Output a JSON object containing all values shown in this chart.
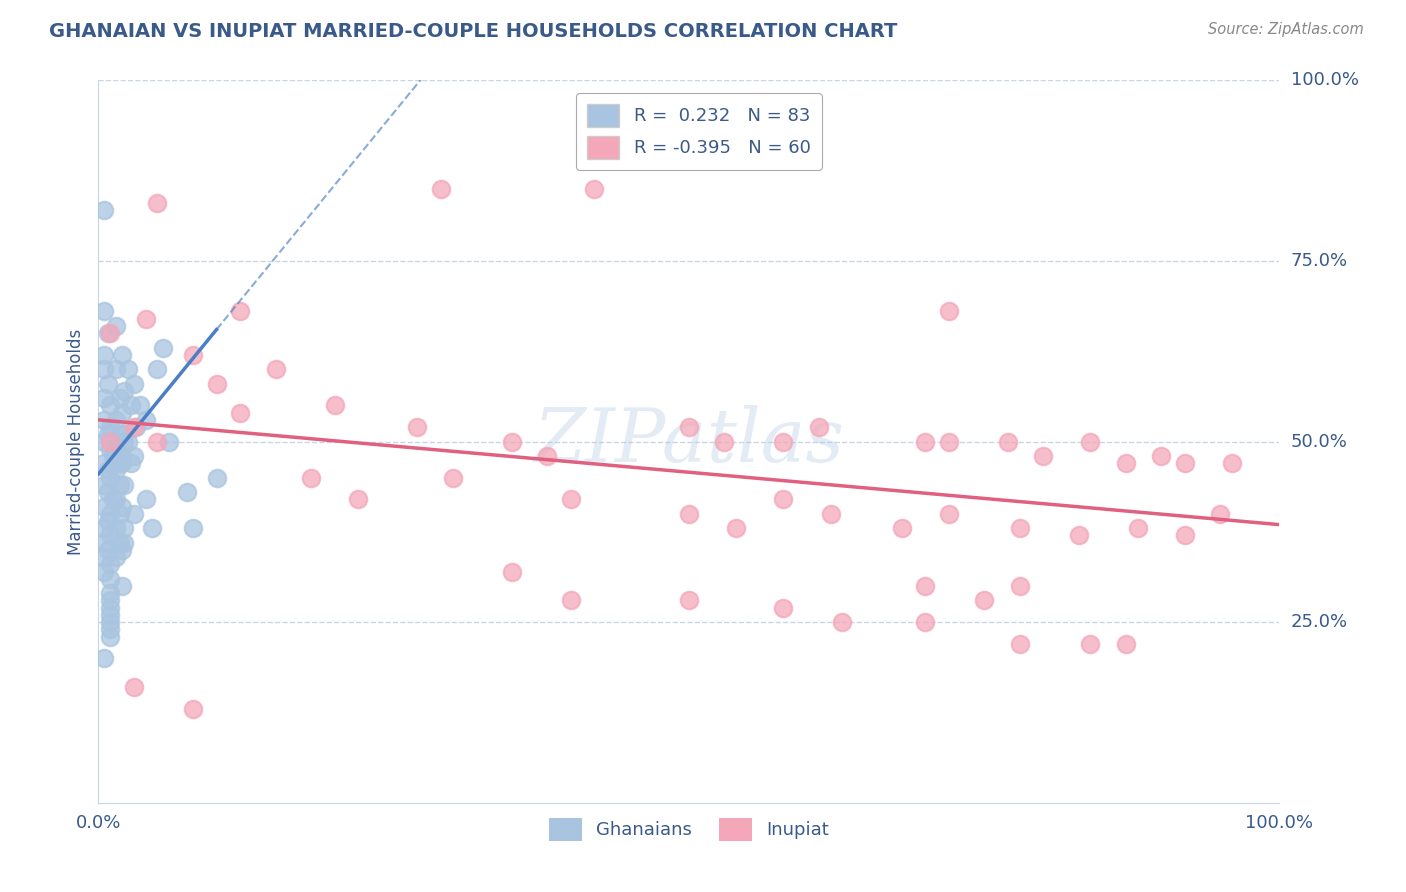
{
  "title": "GHANAIAN VS INUPIAT MARRIED-COUPLE HOUSEHOLDS CORRELATION CHART",
  "source": "Source: ZipAtlas.com",
  "ylabel": "Married-couple Households",
  "xlim": [
    0.0,
    1.0
  ],
  "ylim": [
    0.0,
    1.0
  ],
  "ytick_labels_right": [
    "100.0%",
    "75.0%",
    "50.0%",
    "25.0%"
  ],
  "ytick_vals_right": [
    1.0,
    0.75,
    0.5,
    0.25
  ],
  "watermark": "ZIPatlas",
  "ghanaian_R": 0.232,
  "ghanaian_N": 83,
  "inupiat_R": -0.395,
  "inupiat_N": 60,
  "ghanaian_color": "#a8c4e0",
  "inupiat_color": "#f4a7b9",
  "ghanaian_line_color": "#4a7fc4",
  "inupiat_line_color": "#e06080",
  "ghanaian_scatter": [
    [
      0.005,
      0.82
    ],
    [
      0.005,
      0.68
    ],
    [
      0.008,
      0.65
    ],
    [
      0.005,
      0.62
    ],
    [
      0.005,
      0.6
    ],
    [
      0.008,
      0.58
    ],
    [
      0.005,
      0.56
    ],
    [
      0.01,
      0.55
    ],
    [
      0.005,
      0.53
    ],
    [
      0.01,
      0.52
    ],
    [
      0.008,
      0.51
    ],
    [
      0.005,
      0.5
    ],
    [
      0.01,
      0.49
    ],
    [
      0.012,
      0.48
    ],
    [
      0.005,
      0.47
    ],
    [
      0.008,
      0.46
    ],
    [
      0.01,
      0.45
    ],
    [
      0.005,
      0.44
    ],
    [
      0.008,
      0.43
    ],
    [
      0.012,
      0.42
    ],
    [
      0.005,
      0.41
    ],
    [
      0.01,
      0.4
    ],
    [
      0.008,
      0.39
    ],
    [
      0.005,
      0.38
    ],
    [
      0.01,
      0.37
    ],
    [
      0.005,
      0.36
    ],
    [
      0.008,
      0.35
    ],
    [
      0.005,
      0.34
    ],
    [
      0.01,
      0.33
    ],
    [
      0.005,
      0.32
    ],
    [
      0.015,
      0.66
    ],
    [
      0.015,
      0.6
    ],
    [
      0.018,
      0.56
    ],
    [
      0.015,
      0.53
    ],
    [
      0.018,
      0.51
    ],
    [
      0.015,
      0.49
    ],
    [
      0.018,
      0.47
    ],
    [
      0.015,
      0.46
    ],
    [
      0.018,
      0.44
    ],
    [
      0.015,
      0.42
    ],
    [
      0.018,
      0.4
    ],
    [
      0.015,
      0.38
    ],
    [
      0.018,
      0.36
    ],
    [
      0.015,
      0.34
    ],
    [
      0.02,
      0.62
    ],
    [
      0.022,
      0.57
    ],
    [
      0.02,
      0.54
    ],
    [
      0.022,
      0.51
    ],
    [
      0.02,
      0.48
    ],
    [
      0.022,
      0.44
    ],
    [
      0.02,
      0.41
    ],
    [
      0.022,
      0.38
    ],
    [
      0.02,
      0.35
    ],
    [
      0.025,
      0.6
    ],
    [
      0.028,
      0.55
    ],
    [
      0.025,
      0.5
    ],
    [
      0.028,
      0.47
    ],
    [
      0.03,
      0.58
    ],
    [
      0.032,
      0.52
    ],
    [
      0.03,
      0.48
    ],
    [
      0.035,
      0.55
    ],
    [
      0.04,
      0.53
    ],
    [
      0.05,
      0.6
    ],
    [
      0.055,
      0.63
    ],
    [
      0.04,
      0.42
    ],
    [
      0.045,
      0.38
    ],
    [
      0.06,
      0.5
    ],
    [
      0.005,
      0.2
    ],
    [
      0.02,
      0.47
    ],
    [
      0.022,
      0.5
    ],
    [
      0.01,
      0.28
    ],
    [
      0.01,
      0.25
    ],
    [
      0.02,
      0.3
    ],
    [
      0.03,
      0.4
    ],
    [
      0.022,
      0.36
    ],
    [
      0.01,
      0.31
    ],
    [
      0.01,
      0.29
    ],
    [
      0.01,
      0.27
    ],
    [
      0.01,
      0.26
    ],
    [
      0.01,
      0.24
    ],
    [
      0.01,
      0.23
    ],
    [
      0.075,
      0.43
    ],
    [
      0.08,
      0.38
    ],
    [
      0.1,
      0.45
    ]
  ],
  "inupiat_scatter": [
    [
      0.01,
      0.65
    ],
    [
      0.05,
      0.83
    ],
    [
      0.12,
      0.68
    ],
    [
      0.29,
      0.85
    ],
    [
      0.42,
      0.85
    ],
    [
      0.04,
      0.67
    ],
    [
      0.08,
      0.62
    ],
    [
      0.1,
      0.58
    ],
    [
      0.12,
      0.54
    ],
    [
      0.15,
      0.6
    ],
    [
      0.01,
      0.5
    ],
    [
      0.03,
      0.52
    ],
    [
      0.05,
      0.5
    ],
    [
      0.2,
      0.55
    ],
    [
      0.27,
      0.52
    ],
    [
      0.35,
      0.5
    ],
    [
      0.38,
      0.48
    ],
    [
      0.5,
      0.52
    ],
    [
      0.53,
      0.5
    ],
    [
      0.58,
      0.5
    ],
    [
      0.61,
      0.52
    ],
    [
      0.7,
      0.5
    ],
    [
      0.72,
      0.5
    ],
    [
      0.77,
      0.5
    ],
    [
      0.8,
      0.48
    ],
    [
      0.84,
      0.5
    ],
    [
      0.87,
      0.47
    ],
    [
      0.9,
      0.48
    ],
    [
      0.92,
      0.47
    ],
    [
      0.96,
      0.47
    ],
    [
      0.72,
      0.68
    ],
    [
      0.58,
      0.42
    ],
    [
      0.62,
      0.4
    ],
    [
      0.68,
      0.38
    ],
    [
      0.72,
      0.4
    ],
    [
      0.78,
      0.38
    ],
    [
      0.83,
      0.37
    ],
    [
      0.88,
      0.38
    ],
    [
      0.92,
      0.37
    ],
    [
      0.95,
      0.4
    ],
    [
      0.7,
      0.3
    ],
    [
      0.75,
      0.28
    ],
    [
      0.78,
      0.3
    ],
    [
      0.58,
      0.27
    ],
    [
      0.63,
      0.25
    ],
    [
      0.7,
      0.25
    ],
    [
      0.78,
      0.22
    ],
    [
      0.84,
      0.22
    ],
    [
      0.87,
      0.22
    ],
    [
      0.03,
      0.16
    ],
    [
      0.08,
      0.13
    ],
    [
      0.5,
      0.4
    ],
    [
      0.54,
      0.38
    ],
    [
      0.3,
      0.45
    ],
    [
      0.4,
      0.42
    ],
    [
      0.18,
      0.45
    ],
    [
      0.22,
      0.42
    ],
    [
      0.35,
      0.32
    ],
    [
      0.4,
      0.28
    ],
    [
      0.5,
      0.28
    ]
  ],
  "background_color": "#ffffff",
  "grid_color": "#c8d4e8",
  "title_color": "#3a5a8a",
  "source_color": "#888888",
  "legend_text_color": "#3a5a8a",
  "legend_label_1": "R =  0.232   N = 83",
  "legend_label_2": "R = -0.395   N = 60",
  "bottom_legend_1": "Ghanaians",
  "bottom_legend_2": "Inupiat"
}
